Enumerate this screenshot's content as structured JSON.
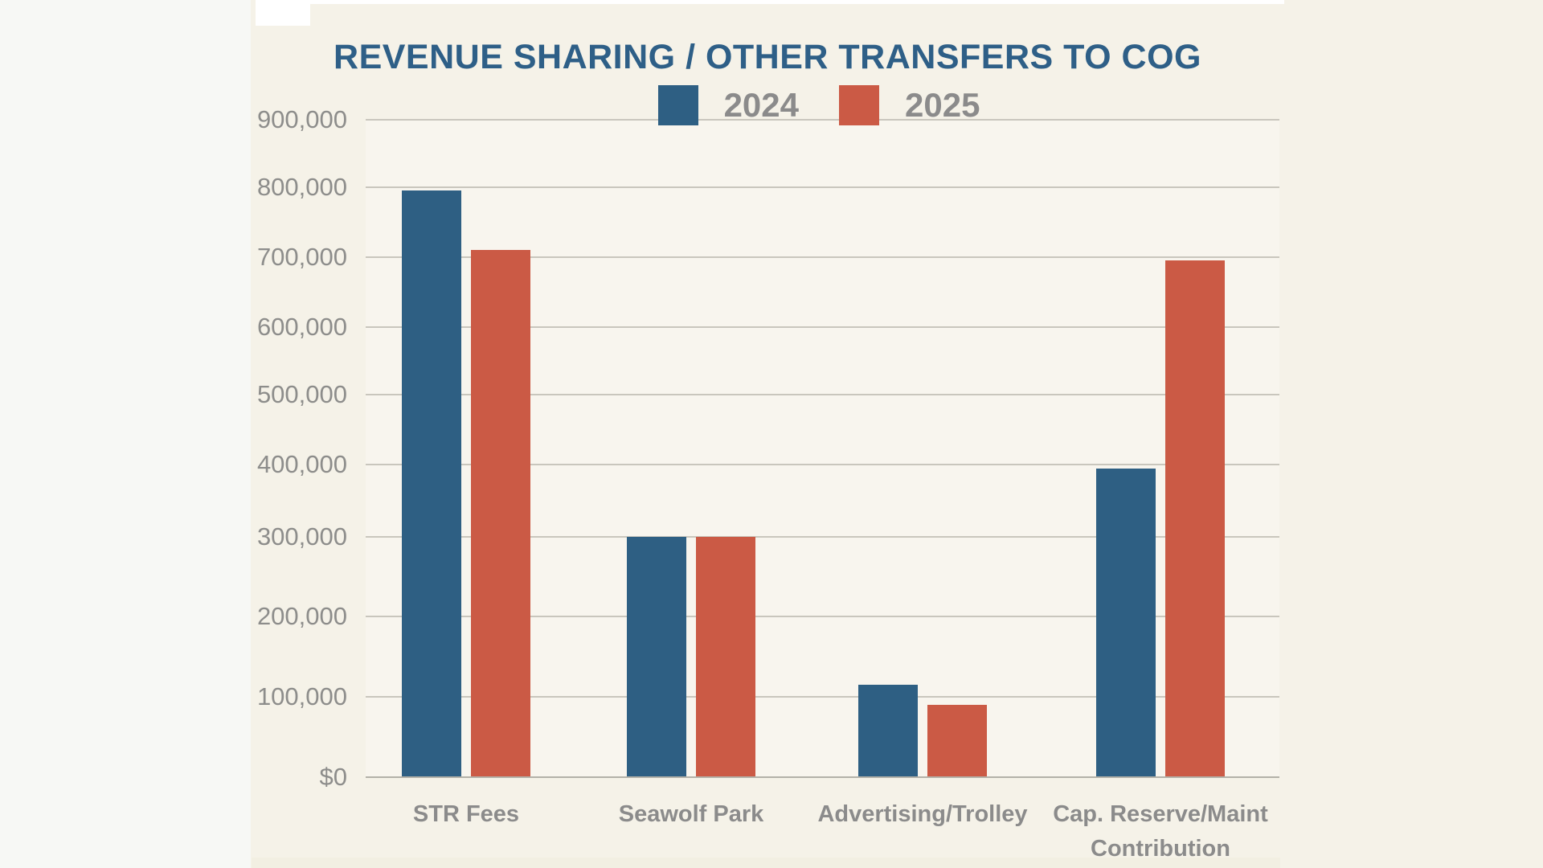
{
  "chart_data": {
    "type": "bar",
    "title": "REVENUE SHARING / OTHER TRANSFERS TO COG",
    "categories": [
      "STR Fees",
      "Seawolf Park",
      "Advertising/Trolley",
      "Cap. Reserve/Maint Contribution"
    ],
    "category_label_lines": [
      [
        "STR Fees"
      ],
      [
        "Seawolf Park"
      ],
      [
        "Advertising/Trolley"
      ],
      [
        "Cap. Reserve/Maint",
        "Contribution"
      ]
    ],
    "series": [
      {
        "name": "2024",
        "color": "#2e5f83",
        "values": [
          795000,
          300000,
          115000,
          395000
        ]
      },
      {
        "name": "2025",
        "color": "#cb5a45",
        "values": [
          710000,
          300000,
          90000,
          695000
        ]
      }
    ],
    "ylim": [
      0,
      900000
    ],
    "ytick_interval": 100000,
    "yticks": [
      {
        "value": 900000,
        "label": "900,000"
      },
      {
        "value": 800000,
        "label": "800,000"
      },
      {
        "value": 700000,
        "label": "700,000"
      },
      {
        "value": 600000,
        "label": "600,000"
      },
      {
        "value": 500000,
        "label": "500,000"
      },
      {
        "value": 400000,
        "label": "400,000"
      },
      {
        "value": 300000,
        "label": "300,000"
      },
      {
        "value": 200000,
        "label": "200,000"
      },
      {
        "value": 100000,
        "label": "100,000"
      },
      {
        "value": 0,
        "label": "$0"
      }
    ],
    "grid": true,
    "legend_position": "top-center",
    "xlabel": "",
    "ylabel": ""
  },
  "colors": {
    "page_background": "#fbfbf9",
    "left_strip": "#f7f8f5",
    "canvas_background": "#f5f2e8",
    "plot_background": "#f8f6ee",
    "title_blue": "#2e5f87",
    "bar_2024_blue": "#2e5f83",
    "bar_2025_red": "#cb5a45",
    "gridline_gray": "#c9c6bd",
    "baseline_gray": "#b3b1a8",
    "label_gray": "#8b8b8b",
    "bottom_band": "#f2efe2"
  }
}
